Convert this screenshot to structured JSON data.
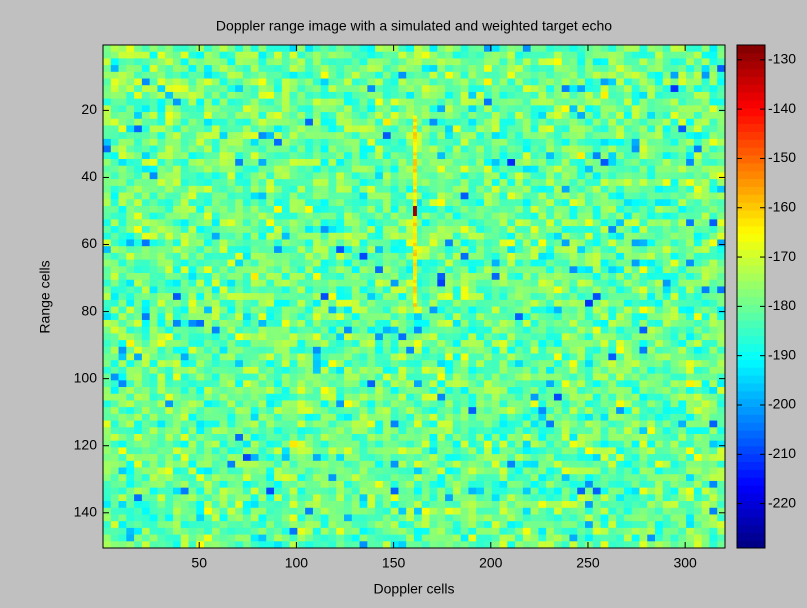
{
  "chart_data": {
    "type": "heatmap",
    "title": "Doppler range image with a simulated and weighted target echo",
    "x_label": "Doppler cells",
    "y_label": "Range cells",
    "xlim": [
      0.5,
      320.5
    ],
    "xticks": [
      50,
      100,
      150,
      200,
      250,
      300
    ],
    "ylim": [
      0.5,
      150.5
    ],
    "yticks": [
      20,
      40,
      60,
      80,
      100,
      120,
      140
    ],
    "y_reversed": true,
    "colormap": "jet",
    "clim": [
      -229,
      -127
    ],
    "colorbar_ticks": [
      -130,
      -140,
      -150,
      -160,
      -170,
      -180,
      -190,
      -200,
      -210,
      -220
    ],
    "noise_level": -180,
    "target": {
      "x": 161,
      "y_range": [
        22,
        78
      ],
      "level": -163,
      "peak_y": 50,
      "peak": -130
    }
  }
}
